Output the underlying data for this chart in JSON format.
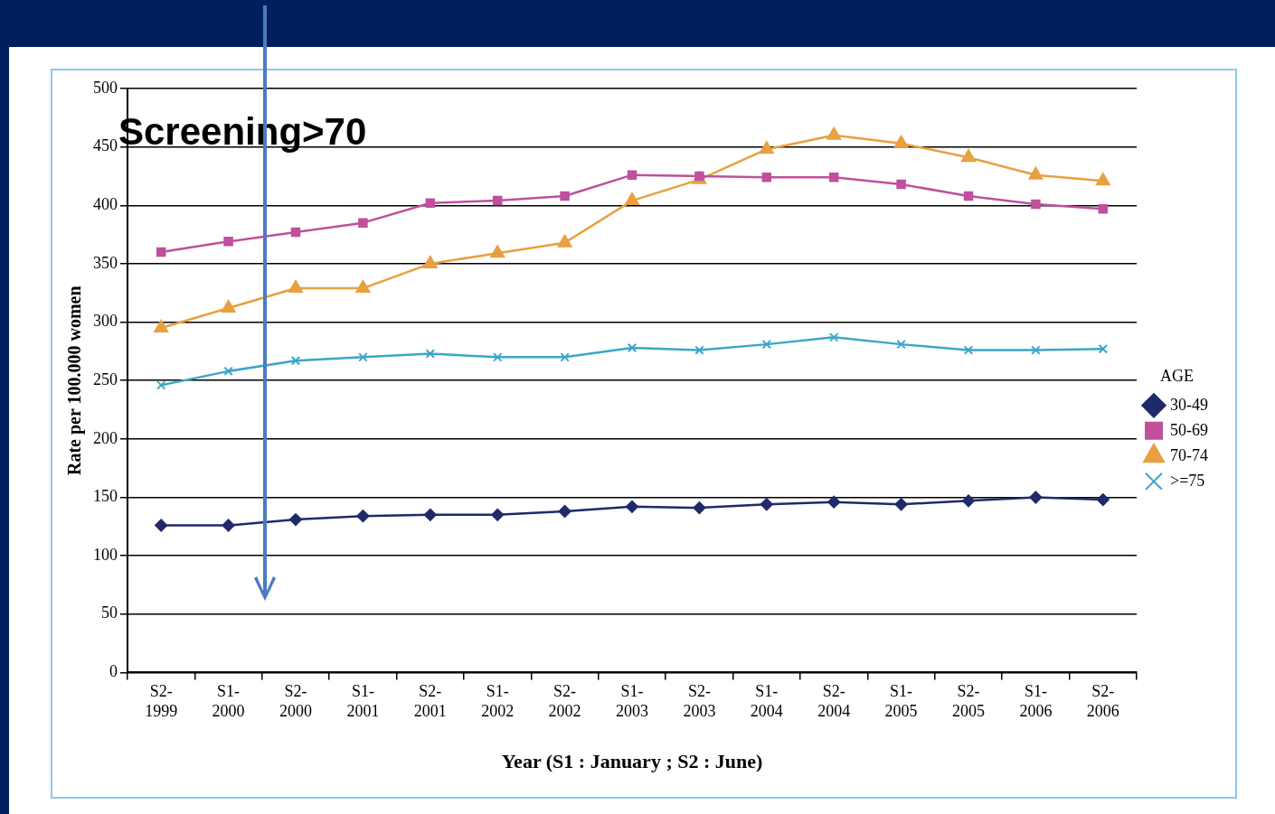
{
  "chart_data": {
    "type": "line",
    "ylabel": "Rate per 100.000 women",
    "xlabel": "Year (S1 : January ; S2 : June)",
    "legend_title": "AGE",
    "legend": "right",
    "grid": "y",
    "categories": [
      "S2-1999",
      "S1-2000",
      "S2-2000",
      "S1-2001",
      "S2-2001",
      "S1-2002",
      "S2-2002",
      "S1-2003",
      "S2-2003",
      "S1-2004",
      "S2-2004",
      "S1-2005",
      "S2-2005",
      "S1-2006",
      "S2-2006"
    ],
    "ylim": [
      0,
      500
    ],
    "yticks": [
      0,
      50,
      100,
      150,
      200,
      250,
      300,
      350,
      400,
      450,
      500
    ],
    "annotations": [
      "Screening>70"
    ],
    "series": [
      {
        "name": "30-49",
        "color": "#1f2a6b",
        "marker": "diamond",
        "values": [
          126,
          126,
          131,
          134,
          135,
          135,
          138,
          142,
          141,
          144,
          146,
          144,
          147,
          150,
          148
        ]
      },
      {
        "name": "50-69",
        "color": "#c0509c",
        "marker": "square",
        "values": [
          360,
          369,
          377,
          385,
          402,
          404,
          408,
          426,
          425,
          424,
          424,
          418,
          408,
          401,
          397
        ]
      },
      {
        "name": "70-74",
        "color": "#e8a040",
        "marker": "triangle",
        "values": [
          295,
          312,
          329,
          329,
          350,
          359,
          368,
          404,
          422,
          448,
          460,
          453,
          441,
          426,
          421
        ]
      },
      {
        "name": ">=75",
        "color": "#3aa6c8",
        "marker": "cross",
        "values": [
          246,
          258,
          267,
          270,
          273,
          270,
          270,
          278,
          276,
          281,
          287,
          281,
          276,
          276,
          277
        ]
      }
    ]
  }
}
